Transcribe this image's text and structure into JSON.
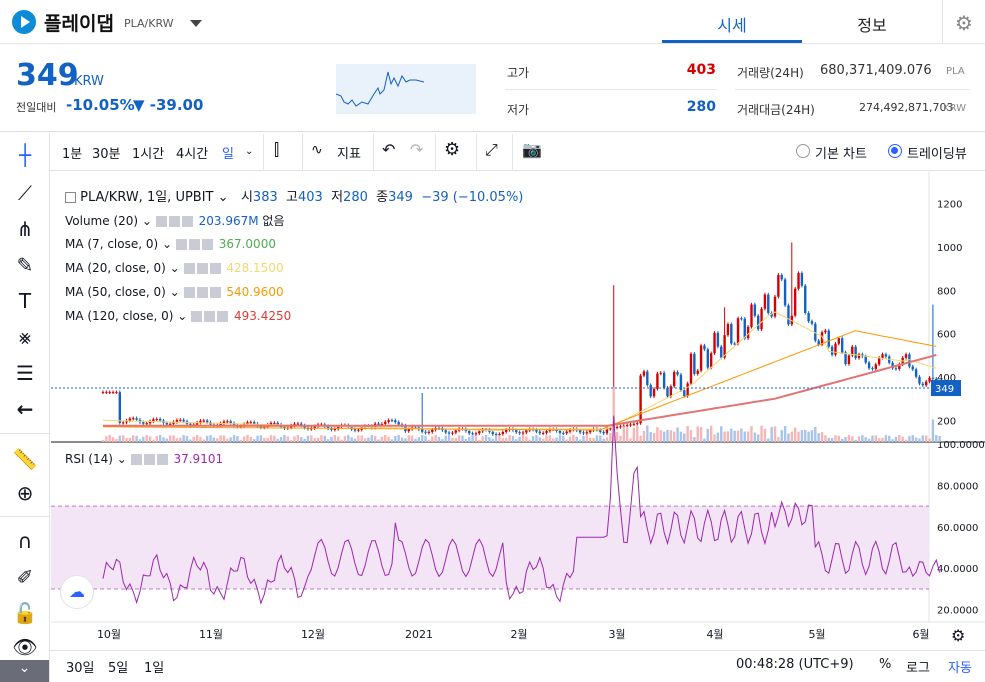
{
  "header": {
    "coin_name": "플레이댑",
    "pair": "PLA/KRW",
    "tabs": [
      "시세",
      "정보"
    ]
  },
  "summary": {
    "price": "349",
    "unit": "KRW",
    "prev_label": "전일대비",
    "change_rate": "-10.05%",
    "change_amt": "▼ -39.00",
    "high_label": "고가",
    "high": "403",
    "low_label": "저가",
    "low": "280",
    "vol_label": "거래량(24H)",
    "vol": "680,371,409.076",
    "vol_unit": "PLA",
    "amt_label": "거래대금(24H)",
    "amt": "274,492,871,703",
    "amt_unit": "KRW"
  },
  "toolbar": {
    "intervals": [
      "1분",
      "30분",
      "1시간",
      "4시간",
      "일"
    ],
    "indicators": "지표",
    "basic_chart": "기본 차트",
    "tradingview": "트레이딩뷰"
  },
  "legend": {
    "main": "PLA/KRW, 1일, UPBIT",
    "o_label": "시",
    "o": "383",
    "h_label": "고",
    "h": "403",
    "l_label": "저",
    "l": "280",
    "c_label": "종",
    "c": "349",
    "chg": "−39 (−10.05%)",
    "volume": "Volume (20)",
    "volume_val": "203.967M",
    "volume_extra": "없음",
    "ma7": "MA (7, close, 0)",
    "ma7_val": "367.0000",
    "ma20": "MA (20, close, 0)",
    "ma20_val": "428.1500",
    "ma50": "MA (50, close, 0)",
    "ma50_val": "540.9600",
    "ma120": "MA (120, close, 0)",
    "ma120_val": "493.4250",
    "rsi": "RSI (14)",
    "rsi_val": "37.9101"
  },
  "price_axis": [
    "1200",
    "1000",
    "800",
    "600",
    "400",
    "200"
  ],
  "price_tag": "349",
  "rsi_axis": [
    "100.0000",
    "80.0000",
    "60.0000",
    "40.0000",
    "20.0000"
  ],
  "x_axis": [
    "10월",
    "11월",
    "12월",
    "2021",
    "2월",
    "3월",
    "4월",
    "5월",
    "6월"
  ],
  "bottom": {
    "ranges": [
      "30일",
      "5일",
      "1일"
    ],
    "clock": "00:48:28 (UTC+9)",
    "pct": "%",
    "log": "로그",
    "auto": "자동"
  },
  "colors": {
    "up": "#d60000",
    "down": "#1261c4",
    "rsi": "#9c27b0"
  },
  "chart_data": {
    "type": "candlestick",
    "ohlc_last": {
      "open": 383,
      "high": 403,
      "low": 280,
      "close": 349
    },
    "ylim": [
      100,
      1300
    ],
    "rsi_ylim": [
      15,
      100
    ],
    "rsi_band": [
      30,
      70
    ],
    "rsi_last": 37.9101
  }
}
